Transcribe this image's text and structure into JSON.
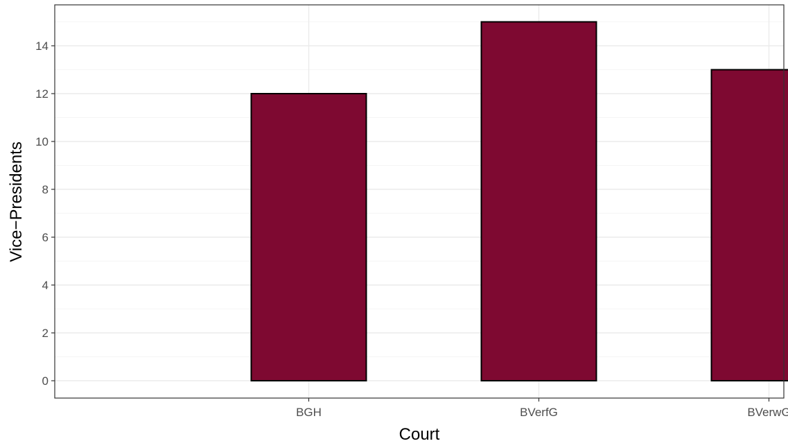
{
  "chart_data": {
    "type": "bar",
    "categories": [
      "BGH",
      "BVerfG",
      "BVerwG"
    ],
    "values": [
      12,
      15,
      13
    ],
    "title": "",
    "xlabel": "Court",
    "ylabel": "Vice−Presidents",
    "ylim": [
      0,
      15
    ],
    "y_ticks": [
      "0",
      "2",
      "4",
      "6",
      "8",
      "10",
      "12",
      "14"
    ],
    "grid": true,
    "legend": "none",
    "colors": {
      "bar_fill": "#7E0931",
      "bar_stroke": "#000000",
      "grid_major": "#EBEBEB",
      "grid_minor": "#F5F5F5",
      "panel_border": "#333333",
      "tick_text": "#4D4D4D",
      "axis_title": "#000000"
    }
  }
}
